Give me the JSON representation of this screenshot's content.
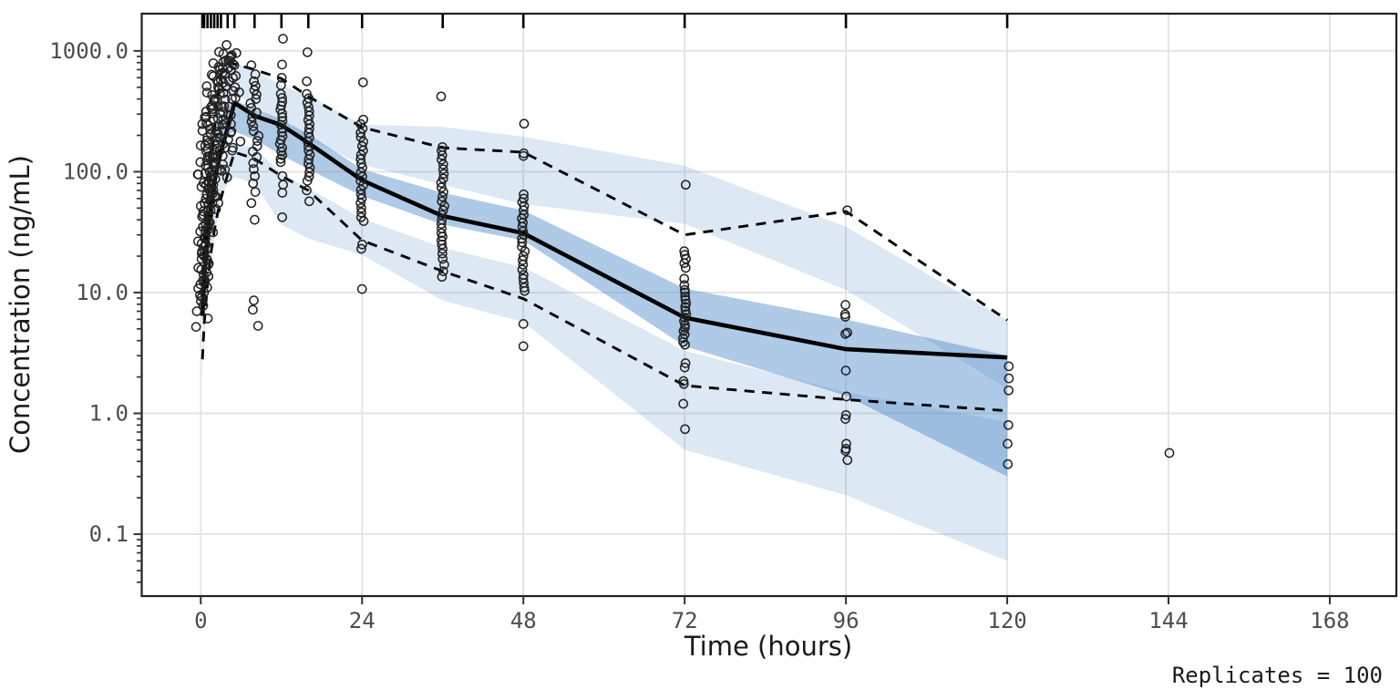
{
  "chart_data": {
    "type": "scatter",
    "subtype": "vpc-log-concentration-time",
    "title": "",
    "xlabel": "Time (hours)",
    "ylabel": "Concentration (ng/mL)",
    "annotation": "Replicates = 100",
    "x_axis": {
      "ticks": [
        0,
        24,
        48,
        72,
        96,
        120,
        144,
        168
      ],
      "range_hours": [
        -8.8,
        178
      ]
    },
    "y_axis": {
      "scale": "log10",
      "tick_values": [
        1000,
        100,
        10,
        1,
        0.1
      ],
      "tick_labels": [
        "1000.0",
        "100.0",
        "10.0",
        "1.0",
        "0.1"
      ],
      "range": [
        0.031,
        2050
      ],
      "minor_ticks_per_decade": [
        2,
        3,
        4,
        5,
        6,
        7,
        8,
        9
      ]
    },
    "grid": {
      "major": true,
      "minor": false
    },
    "legend_position": "none",
    "rug_times": [
      0.25,
      0.5,
      1,
      1.5,
      2,
      2.5,
      3,
      4,
      5,
      8,
      12,
      16,
      24,
      36,
      48,
      72,
      96,
      120
    ],
    "bin_times": [
      0.25,
      0.5,
      1,
      1.5,
      2,
      2.5,
      3,
      4,
      5,
      8,
      12,
      16,
      24,
      36,
      48,
      72,
      96,
      120
    ],
    "ribbons": [
      {
        "name": "ci-95th-percentile",
        "tone": "light",
        "hi": [
          18,
          35,
          75,
          140,
          260,
          450,
          640,
          780,
          800,
          690,
          520,
          430,
          245,
          235,
          195,
          112,
          35,
          5.9
        ],
        "lo": [
          10,
          20,
          42,
          80,
          140,
          240,
          340,
          420,
          430,
          360,
          233,
          185,
          115,
          78,
          54,
          37,
          10.5,
          1.6
        ]
      },
      {
        "name": "ci-5th-percentile",
        "tone": "light",
        "hi": [
          4,
          7.5,
          16,
          30,
          50,
          80,
          115,
          150,
          168,
          158,
          97,
          73,
          41,
          23.5,
          16.2,
          3.3,
          1.5,
          0.85
        ],
        "lo": [
          2,
          4,
          8.5,
          16,
          27,
          43,
          62,
          80,
          90,
          80,
          36.5,
          28,
          20.5,
          8.6,
          5.7,
          0.5,
          0.21,
          0.06
        ]
      },
      {
        "name": "ci-median",
        "tone": "mid",
        "hi": [
          9,
          17,
          38,
          70,
          120,
          200,
          290,
          360,
          390,
          335,
          270,
          205,
          105,
          67,
          48,
          10.8,
          6.0,
          3.0
        ],
        "lo": [
          5,
          10,
          22,
          40,
          68,
          110,
          160,
          200,
          215,
          185,
          137,
          105,
          63,
          36.5,
          27,
          3.6,
          1.4,
          0.3
        ]
      }
    ],
    "lines": [
      {
        "name": "observed-95th-percentile",
        "style": "dashed",
        "c": [
          14,
          28,
          60,
          110,
          210,
          400,
          640,
          790,
          780,
          700,
          590,
          420,
          233,
          158,
          145,
          30,
          47,
          5.9
        ]
      },
      {
        "name": "observed-5th-percentile",
        "style": "dashed",
        "c": [
          2.8,
          5.5,
          12,
          21,
          32,
          45,
          60,
          95,
          145,
          128,
          92,
          70,
          27,
          15,
          8.9,
          1.7,
          1.3,
          1.05
        ]
      },
      {
        "name": "observed-median",
        "style": "solid",
        "c": [
          6.4,
          13,
          30,
          52,
          80,
          110,
          148,
          230,
          372,
          290,
          243,
          173,
          85,
          43,
          31,
          6.2,
          3.4,
          2.9
        ]
      }
    ],
    "observations": [
      {
        "time": 0.25,
        "values": [
          5.2,
          6.1,
          7,
          7.8,
          8.5,
          9.2,
          10,
          10.8,
          11.7,
          12.6,
          13.6,
          14.7,
          16,
          17.4,
          19,
          21,
          23,
          25.5,
          28.5,
          32,
          37,
          44,
          55,
          75,
          95,
          120
        ]
      },
      {
        "time": 0.5,
        "values": [
          9.5,
          11,
          12.5,
          14,
          15.5,
          17,
          18.5,
          20,
          22,
          24,
          26.5,
          29,
          32,
          35,
          38.5,
          42.5,
          47,
          52,
          58,
          65,
          73,
          83,
          95,
          112,
          135,
          165
        ]
      },
      {
        "time": 1,
        "values": [
          19,
          22,
          25,
          28,
          31.5,
          35,
          39,
          43.5,
          48.5,
          54,
          60,
          66,
          73,
          81,
          90,
          100,
          111,
          124,
          138,
          154,
          172,
          193,
          218,
          248,
          285,
          330
        ]
      },
      {
        "time": 1.5,
        "values": [
          33,
          38,
          43,
          49,
          55,
          62,
          70,
          78,
          87,
          97,
          108,
          120,
          133,
          148,
          164,
          182,
          203,
          226,
          252,
          282,
          316,
          355,
          400,
          452,
          510
        ]
      },
      {
        "time": 2,
        "values": [
          48,
          55,
          63,
          72,
          82,
          93,
          105,
          119,
          134,
          151,
          170,
          191,
          215,
          242,
          272,
          305,
          342,
          384,
          432,
          486,
          548,
          618,
          700,
          790
        ]
      },
      {
        "time": 2.5,
        "values": [
          68,
          78,
          89,
          102,
          116,
          132,
          150,
          170,
          192,
          217,
          245,
          276,
          311,
          350,
          394,
          444,
          500,
          563,
          635,
          716,
          808,
          980
        ]
      },
      {
        "time": 3,
        "values": [
          90,
          104,
          120,
          138,
          158,
          181,
          207,
          236,
          269,
          306,
          348,
          395,
          448,
          508,
          576,
          652,
          738,
          835,
          945,
          1120
        ]
      },
      {
        "time": 4,
        "values": [
          115,
          135,
          158,
          185,
          216,
          252,
          294,
          343,
          400,
          467,
          545,
          600,
          660,
          720,
          780,
          830,
          880,
          920
        ]
      },
      {
        "time": 5,
        "values": [
          150,
          178,
          210,
          248,
          293,
          346,
          408,
          455,
          500,
          560,
          620,
          690,
          760,
          830,
          900,
          960
        ]
      },
      {
        "time": 8,
        "values": [
          5.3,
          7.2,
          8.6,
          40,
          55,
          68,
          80,
          92,
          105,
          118,
          132,
          147,
          163,
          180,
          198,
          217,
          238,
          260,
          284,
          310,
          338,
          368,
          400,
          435,
          473,
          514,
          560,
          640,
          760
        ]
      },
      {
        "time": 12,
        "values": [
          42,
          67,
          78,
          92,
          120,
          128,
          137,
          147,
          158,
          170,
          183,
          197,
          212,
          228,
          245,
          263,
          283,
          304,
          327,
          352,
          379,
          408,
          440,
          520,
          600,
          770,
          1260
        ]
      },
      {
        "time": 16,
        "values": [
          57,
          70,
          84,
          91,
          99,
          108,
          117,
          127,
          138,
          150,
          163,
          177,
          192,
          209,
          227,
          247,
          268,
          291,
          316,
          343,
          373,
          405,
          440,
          560,
          975
        ]
      },
      {
        "time": 24,
        "values": [
          10.7,
          23,
          25,
          39,
          42,
          46,
          50,
          55,
          60,
          65,
          71,
          77,
          84,
          91,
          99,
          108,
          117,
          127,
          138,
          150,
          163,
          177,
          193,
          210,
          228,
          248,
          270,
          550
        ]
      },
      {
        "time": 36,
        "values": [
          13.5,
          15,
          17,
          19,
          21,
          23,
          25,
          27,
          29,
          31,
          34,
          37,
          40,
          44,
          48,
          52,
          57,
          62,
          68,
          74,
          81,
          88,
          96,
          105,
          115,
          126,
          137,
          150,
          160,
          420
        ]
      },
      {
        "time": 48,
        "values": [
          3.6,
          5.5,
          10.3,
          11,
          12,
          13,
          14,
          15.5,
          17,
          18.5,
          20,
          22,
          24,
          26,
          28,
          30,
          32,
          35,
          38,
          41,
          44,
          48,
          52,
          56,
          60,
          65,
          135,
          142,
          250
        ]
      },
      {
        "time": 72,
        "values": [
          0.74,
          1.2,
          1.75,
          1.85,
          2.4,
          2.6,
          3.7,
          3.9,
          4.2,
          4.5,
          4.8,
          5.1,
          5.4,
          5.8,
          6.2,
          6.6,
          7.1,
          7.6,
          8.1,
          8.7,
          9.3,
          10,
          10.5,
          11.5,
          13,
          16,
          17.5,
          19,
          20.5,
          22,
          78
        ]
      },
      {
        "time": 96,
        "values": [
          0.41,
          0.49,
          0.51,
          0.56,
          0.9,
          0.97,
          1.38,
          2.26,
          4.55,
          4.65,
          6.3,
          6.6,
          7.9,
          48
        ]
      },
      {
        "time": 120,
        "values": [
          0.38,
          0.56,
          0.8,
          1.55,
          1.95,
          2.45
        ]
      },
      {
        "time": 144,
        "values": [
          0.47
        ]
      }
    ],
    "colors": {
      "ribbon_base": "#508cc8",
      "ribbon_light_alpha": 0.2,
      "ribbon_mid_alpha": 0.46,
      "line": "#000000",
      "point_stroke": "#212121",
      "grid": "#e3e3e3",
      "panel_border": "#1f1f1f",
      "tick": "#333333",
      "tick_label": "#4d4d4d",
      "axis_title": "#1a1a1a"
    }
  }
}
